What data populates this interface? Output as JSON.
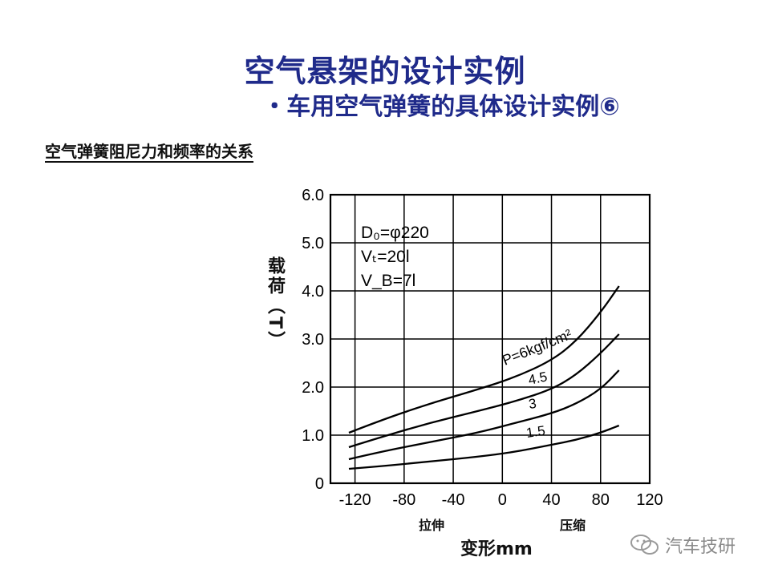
{
  "slide": {
    "title": "空气悬架的设计实例",
    "subtitle": "・车用空气弹簧的具体设计实例⑥",
    "section_heading": "空气弹簧阻尼力和频率的关系"
  },
  "chart_data": {
    "type": "line",
    "ylabel": "载荷（T）",
    "xlabel": "变形mm",
    "x_ticks": [
      "-120",
      "-80",
      "-40",
      "0",
      "40",
      "80",
      "120"
    ],
    "y_ticks": [
      "0",
      "1.0",
      "2.0",
      "3.0",
      "4.0",
      "5.0",
      "6.0"
    ],
    "xlim": [
      -140,
      120
    ],
    "ylim": [
      0,
      6
    ],
    "grid": true,
    "x_captions": {
      "left": "拉伸",
      "right": "压缩"
    },
    "params": [
      "D₀=φ220",
      "Vₜ=20l",
      "V_B=7l"
    ],
    "series": [
      {
        "name": "P=6kgf/cm²",
        "points": [
          [
            -125,
            1.05
          ],
          [
            -100,
            1.3
          ],
          [
            -60,
            1.65
          ],
          [
            -20,
            1.95
          ],
          [
            10,
            2.2
          ],
          [
            40,
            2.55
          ],
          [
            60,
            2.95
          ],
          [
            80,
            3.55
          ],
          [
            95,
            4.1
          ]
        ]
      },
      {
        "name": "4.5",
        "points": [
          [
            -125,
            0.75
          ],
          [
            -100,
            0.95
          ],
          [
            -60,
            1.25
          ],
          [
            -20,
            1.5
          ],
          [
            10,
            1.7
          ],
          [
            40,
            1.95
          ],
          [
            60,
            2.25
          ],
          [
            80,
            2.7
          ],
          [
            95,
            3.1
          ]
        ]
      },
      {
        "name": "3",
        "points": [
          [
            -125,
            0.5
          ],
          [
            -100,
            0.65
          ],
          [
            -60,
            0.85
          ],
          [
            -20,
            1.05
          ],
          [
            10,
            1.25
          ],
          [
            40,
            1.45
          ],
          [
            60,
            1.65
          ],
          [
            80,
            1.95
          ],
          [
            95,
            2.35
          ]
        ]
      },
      {
        "name": "1.5",
        "points": [
          [
            -125,
            0.3
          ],
          [
            -100,
            0.35
          ],
          [
            -60,
            0.45
          ],
          [
            -20,
            0.55
          ],
          [
            10,
            0.65
          ],
          [
            40,
            0.8
          ],
          [
            60,
            0.9
          ],
          [
            80,
            1.05
          ],
          [
            95,
            1.2
          ]
        ]
      }
    ]
  },
  "watermark": {
    "text": "汽车技研"
  }
}
